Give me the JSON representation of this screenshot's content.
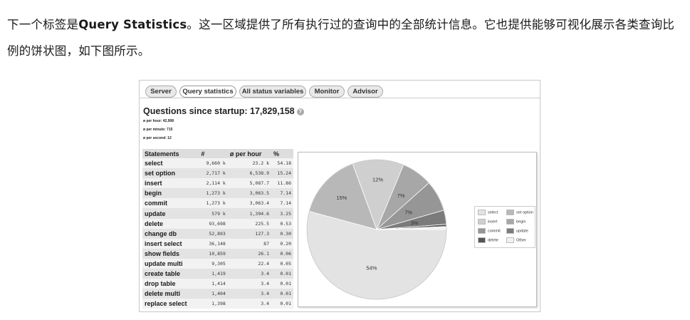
{
  "paragraph": {
    "pre": "下一个标签是",
    "bold": "Query Statistics",
    "post": "。这一区域提供了所有执行过的查询中的全部统计信息。它也提供能够可视化展示各类查询比例的饼状图，如下图所示。"
  },
  "screenshot": {
    "tabs": [
      {
        "label": "Server"
      },
      {
        "label": "Query statistics"
      },
      {
        "label": "All status variables"
      },
      {
        "label": "Monitor"
      },
      {
        "label": "Advisor"
      }
    ],
    "questions_title": "Questions since startup: 17,829,158",
    "rates": [
      "ø per hour: 42,908",
      "ø per minute: 715",
      "ø per second: 12"
    ],
    "table": {
      "headers": [
        "Statements",
        "#",
        "ø per hour",
        "%"
      ],
      "rows": [
        [
          "select",
          "9,660 k",
          "23.2 k",
          "54.18"
        ],
        [
          "set option",
          "2,717 k",
          "6,538.9",
          "15.24"
        ],
        [
          "insert",
          "2,114 k",
          "5,087.7",
          "11.86"
        ],
        [
          "begin",
          "1,273 k",
          "3,063.5",
          "7.14"
        ],
        [
          "commit",
          "1,273 k",
          "3,063.4",
          "7.14"
        ],
        [
          "update",
          "579 k",
          "1,394.6",
          "3.25"
        ],
        [
          "delete",
          "93,698",
          "225.5",
          "0.53"
        ],
        [
          "change db",
          "52,893",
          "127.3",
          "0.30"
        ],
        [
          "insert select",
          "36,148",
          "87",
          "0.20"
        ],
        [
          "show fields",
          "10,859",
          "26.1",
          "0.06"
        ],
        [
          "update multi",
          "9,305",
          "22.4",
          "0.05"
        ],
        [
          "create table",
          "1,419",
          "3.4",
          "0.01"
        ],
        [
          "drop table",
          "1,414",
          "3.4",
          "0.01"
        ],
        [
          "delete multi",
          "1,404",
          "3.4",
          "0.01"
        ],
        [
          "replace select",
          "1,398",
          "3.4",
          "0.01"
        ]
      ]
    }
  },
  "chart_data": {
    "type": "pie",
    "categories": [
      "select",
      "set option",
      "insert",
      "begin",
      "commit",
      "update",
      "delete",
      "Other"
    ],
    "values": [
      54.18,
      15.24,
      11.86,
      7.14,
      7.14,
      3.25,
      0.53,
      0.66
    ],
    "data_labels": [
      "54%",
      "15%",
      "12%",
      "7%",
      "7%",
      "3%",
      "",
      ""
    ],
    "colors": [
      "#e3e3e3",
      "#b8b8b8",
      "#cfcfcf",
      "#a7a7a7",
      "#969696",
      "#7b7b7b",
      "#555555",
      "#f2f2f2"
    ],
    "legend_position": "right"
  }
}
